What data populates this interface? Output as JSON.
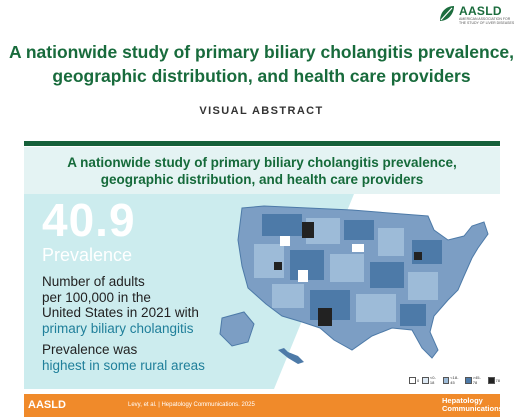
{
  "header": {
    "logo_text": "AASLD",
    "logo_tagline": "AMERICAN ASSOCIATION FOR THE STUDY OF LIVER DISEASES",
    "title_line1": "A nationwide study of primary biliary cholangitis prevalence,",
    "title_line2": "geographic distribution, and health care providers",
    "subtitle": "VISUAL ABSTRACT"
  },
  "card": {
    "title_line1": "A nationwide study of primary biliary cholangitis prevalence,",
    "title_line2": "geographic distribution, and health care providers",
    "stat_value": "40.9",
    "stat_label": "Prevalence",
    "desc_line1": "Number of adults",
    "desc_line2": "per 100,000 in the",
    "desc_line3": "United States in 2021 with",
    "desc_highlight": "primary biliary cholangitis",
    "finding_line1": "Prevalence was",
    "finding_highlight": "highest in some rural areas"
  },
  "legend": [
    {
      "label": "0",
      "color": "#ffffff"
    },
    {
      "label": "<0-18",
      "color": "#dce8f3"
    },
    {
      "label": "<18-45",
      "color": "#9dbbd8"
    },
    {
      "label": ">45-78",
      "color": "#4d7aa8"
    },
    {
      "label": "78",
      "color": "#222222"
    }
  ],
  "footer": {
    "logo_text": "AASLD",
    "citation": "Levy, et al. | Hepatology Communications. 2025",
    "journal_line1": "Hepatology",
    "journal_line2": "Communications"
  },
  "colors": {
    "brand_green": "#186b3c",
    "teal_panel": "#ccecee",
    "footer_orange": "#f08a2a",
    "map_dark": "#4d7aa8",
    "map_light": "#9dbbd8"
  }
}
